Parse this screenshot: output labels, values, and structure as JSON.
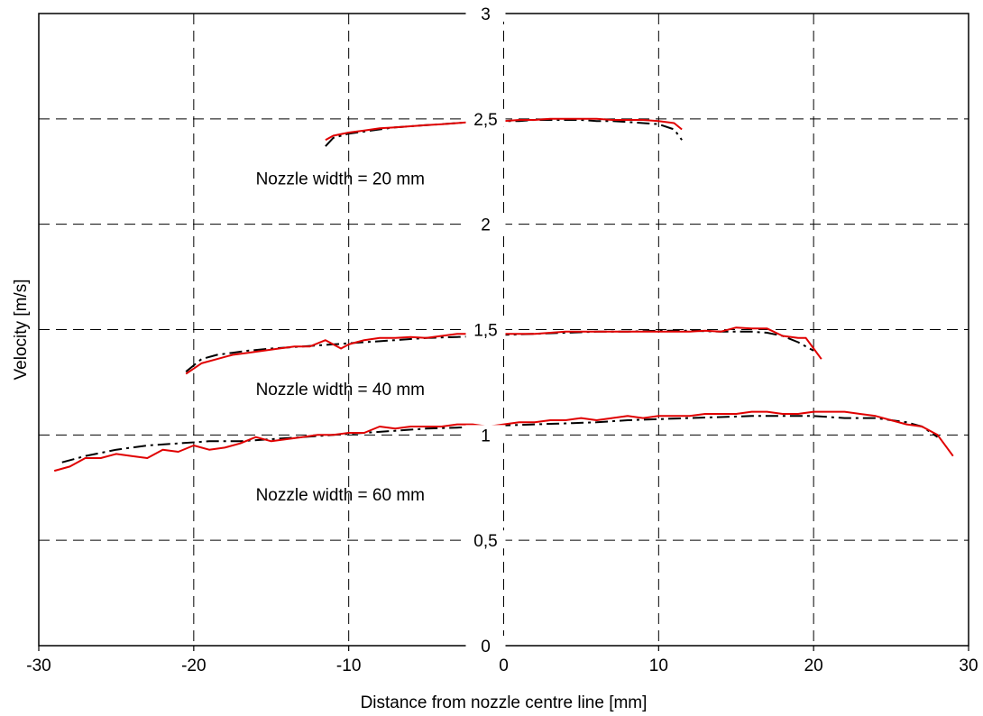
{
  "chart_data": {
    "type": "line",
    "title": "",
    "xlabel": "Distance from nozzle centre line [mm]",
    "ylabel": "Velocity [m/s]",
    "xlim": [
      -30,
      30
    ],
    "ylim": [
      0,
      3
    ],
    "x_ticks": [
      -30,
      -20,
      -10,
      0,
      10,
      20,
      30
    ],
    "y_ticks": [
      0,
      0.5,
      1,
      1.5,
      2,
      2.5,
      3
    ],
    "x_tick_labels": [
      "-30",
      "-20",
      "-10",
      "0",
      "10",
      "20",
      "30"
    ],
    "y_tick_labels": [
      "0",
      "0,5",
      "1",
      "1,5",
      "2",
      "2,5",
      "3"
    ],
    "grid": true,
    "annotations": [
      {
        "text": "Nozzle width = 20 mm",
        "x": -16,
        "y": 2.19
      },
      {
        "text": "Nozzle width = 40 mm",
        "x": -16,
        "y": 1.19
      },
      {
        "text": "Nozzle width = 60 mm",
        "x": -16,
        "y": 0.69
      }
    ],
    "series": [
      {
        "color": "#e00000",
        "style": "solid",
        "x": [
          -11.5,
          -11,
          -10,
          -9,
          -8,
          -7,
          -6,
          -5,
          -4,
          -3,
          -2,
          -1,
          0,
          1,
          2,
          3,
          4,
          5,
          6,
          7,
          8,
          9,
          10,
          11,
          11.5
        ],
        "y": [
          2.4,
          2.42,
          2.435,
          2.445,
          2.455,
          2.46,
          2.465,
          2.47,
          2.475,
          2.48,
          2.485,
          2.49,
          2.49,
          2.495,
          2.495,
          2.5,
          2.5,
          2.5,
          2.5,
          2.495,
          2.495,
          2.495,
          2.49,
          2.48,
          2.45
        ]
      },
      {
        "color": "#000000",
        "style": "dashdot",
        "x": [
          -11.5,
          -11,
          -10,
          -9,
          -8,
          -7,
          -6,
          -5,
          -4,
          -3,
          -2,
          -1,
          0,
          1,
          2,
          3,
          4,
          5,
          6,
          7,
          8,
          9,
          10,
          11,
          11.5
        ],
        "y": [
          2.37,
          2.41,
          2.43,
          2.44,
          2.45,
          2.46,
          2.465,
          2.47,
          2.475,
          2.48,
          2.485,
          2.485,
          2.49,
          2.49,
          2.495,
          2.495,
          2.495,
          2.495,
          2.49,
          2.49,
          2.485,
          2.48,
          2.475,
          2.45,
          2.4
        ]
      },
      {
        "color": "#e00000",
        "style": "solid",
        "x": [
          -20.5,
          -19.5,
          -18.5,
          -17.5,
          -16.5,
          -15.5,
          -14.5,
          -13.5,
          -12.5,
          -11.5,
          -11,
          -10.5,
          -10,
          -9.5,
          -9,
          -8,
          -7,
          -6,
          -5,
          -4,
          -3,
          -2,
          -1,
          0,
          1,
          2,
          3,
          4,
          5,
          6,
          7,
          8,
          9,
          10,
          11,
          12,
          13,
          14,
          15,
          16,
          17,
          18,
          19,
          19.5,
          20,
          20.5
        ],
        "y": [
          1.29,
          1.34,
          1.36,
          1.38,
          1.39,
          1.4,
          1.41,
          1.42,
          1.42,
          1.45,
          1.43,
          1.41,
          1.43,
          1.44,
          1.45,
          1.46,
          1.46,
          1.465,
          1.46,
          1.47,
          1.48,
          1.48,
          1.48,
          1.48,
          1.48,
          1.48,
          1.485,
          1.49,
          1.49,
          1.49,
          1.49,
          1.49,
          1.49,
          1.49,
          1.49,
          1.49,
          1.495,
          1.49,
          1.51,
          1.505,
          1.505,
          1.47,
          1.46,
          1.46,
          1.41,
          1.36
        ]
      },
      {
        "color": "#000000",
        "style": "dashdot",
        "x": [
          -20.5,
          -19.5,
          -18.5,
          -17.5,
          -16.5,
          -15,
          -13,
          -11,
          -9,
          -7,
          -5,
          -3,
          -1,
          0,
          2,
          4,
          6,
          8,
          10,
          12,
          14,
          16,
          17,
          18,
          19,
          20
        ],
        "y": [
          1.3,
          1.36,
          1.38,
          1.39,
          1.4,
          1.41,
          1.42,
          1.43,
          1.44,
          1.45,
          1.46,
          1.465,
          1.47,
          1.475,
          1.48,
          1.485,
          1.49,
          1.49,
          1.495,
          1.495,
          1.49,
          1.49,
          1.485,
          1.47,
          1.44,
          1.4
        ]
      },
      {
        "color": "#e00000",
        "style": "solid",
        "x": [
          -29,
          -28,
          -27,
          -26,
          -25,
          -24,
          -23,
          -22,
          -21,
          -20,
          -19,
          -18,
          -17,
          -16,
          -15,
          -14,
          -13,
          -12,
          -11,
          -10,
          -9,
          -8,
          -7,
          -6,
          -5,
          -4,
          -3,
          -2,
          -1,
          0,
          1,
          2,
          3,
          4,
          5,
          6,
          7,
          8,
          9,
          10,
          11,
          12,
          13,
          14,
          15,
          16,
          17,
          18,
          19,
          20,
          21,
          22,
          23,
          24,
          25,
          26,
          27,
          28,
          29
        ],
        "y": [
          0.83,
          0.85,
          0.89,
          0.89,
          0.91,
          0.9,
          0.89,
          0.93,
          0.92,
          0.95,
          0.93,
          0.94,
          0.96,
          0.99,
          0.97,
          0.98,
          0.99,
          1.0,
          1.0,
          1.01,
          1.01,
          1.04,
          1.03,
          1.04,
          1.04,
          1.04,
          1.05,
          1.05,
          1.04,
          1.05,
          1.06,
          1.06,
          1.07,
          1.07,
          1.08,
          1.07,
          1.08,
          1.09,
          1.08,
          1.09,
          1.09,
          1.09,
          1.1,
          1.1,
          1.1,
          1.11,
          1.11,
          1.1,
          1.1,
          1.11,
          1.11,
          1.11,
          1.1,
          1.09,
          1.07,
          1.05,
          1.04,
          1.0,
          0.9
        ]
      },
      {
        "color": "#000000",
        "style": "dashdot",
        "x": [
          -28.5,
          -27,
          -25,
          -23,
          -21,
          -19,
          -17,
          -15,
          -13,
          -11,
          -9,
          -7,
          -5,
          -3,
          -1,
          0,
          2,
          4,
          6,
          8,
          10,
          12,
          14,
          16,
          18,
          20,
          22,
          24,
          26,
          27,
          28
        ],
        "y": [
          0.87,
          0.9,
          0.93,
          0.95,
          0.96,
          0.97,
          0.97,
          0.98,
          0.99,
          1.0,
          1.01,
          1.02,
          1.03,
          1.035,
          1.04,
          1.045,
          1.05,
          1.055,
          1.06,
          1.07,
          1.075,
          1.08,
          1.085,
          1.09,
          1.09,
          1.09,
          1.08,
          1.08,
          1.06,
          1.04,
          0.99
        ]
      }
    ]
  }
}
